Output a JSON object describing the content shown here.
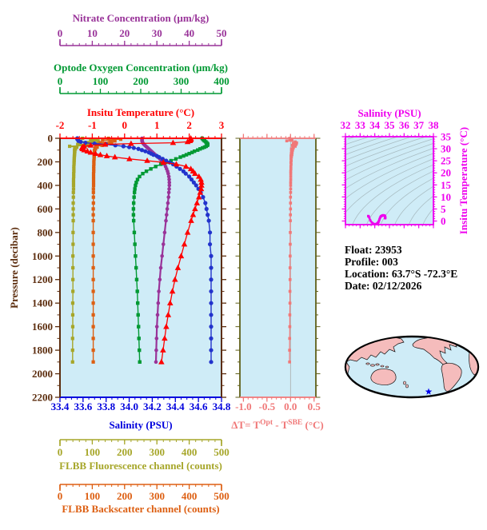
{
  "info": {
    "lines": [
      "Float:  23953",
      "Profile:  003",
      "Location:  63.7°S  -72.3°E",
      "Date:  02/12/2026"
    ]
  },
  "colors": {
    "nitrate": "#993399",
    "oxygen": "#009933",
    "temperature": "#FF0000",
    "pressure": "#5C2D0E",
    "salinity": "#0000DD",
    "salinity_curve": "#2233CC",
    "delta": "#F07878",
    "delta_frame": "#5F5F18",
    "magenta": "#EE00EE",
    "fluor": "#A6A629",
    "backscatter": "#DD5F12",
    "plot_bg": "#CFECF7",
    "land": "#F5BCBC",
    "contour": "#A8BCC2",
    "map_outline": "#000000",
    "zero_line": "#AAAAAA",
    "star": "#0000EE",
    "info_text": "#000000"
  },
  "axes": {
    "nitrate": {
      "label": "Nitrate Concentration (µm/kg)",
      "ticks": [
        "0",
        "10",
        "20",
        "30",
        "40",
        "50"
      ],
      "min": 0,
      "max": 50,
      "minor": 2
    },
    "oxygen": {
      "label": "Optode Oxygen Concentration (µm/kg)",
      "ticks": [
        "0",
        "100",
        "200",
        "300",
        "400"
      ],
      "min": 0,
      "max": 400,
      "minor": 20
    },
    "temperature": {
      "label": "Insitu Temperature (°C)",
      "ticks": [
        "-2",
        "-1",
        "0",
        "1",
        "2",
        "3"
      ],
      "min": -2,
      "max": 3,
      "minor": 0.2
    },
    "pressure": {
      "label": "Pressure (decibar)",
      "ticks": [
        "0",
        "200",
        "400",
        "600",
        "800",
        "1000",
        "1200",
        "1400",
        "1600",
        "1800",
        "2000",
        "2200"
      ],
      "min": 0,
      "max": 2200,
      "minor": 100
    },
    "salinity": {
      "label": "Salinity (PSU)",
      "ticks": [
        "33.4",
        "33.6",
        "33.8",
        "34.0",
        "34.2",
        "34.4",
        "34.6",
        "34.8"
      ],
      "min": 33.4,
      "max": 34.8,
      "minor": 0.05
    },
    "fluor": {
      "label": "FLBB Fluorescence channel (counts)",
      "ticks": [
        "0",
        "100",
        "200",
        "300",
        "400",
        "500"
      ],
      "min": 0,
      "max": 500,
      "minor": 20
    },
    "back": {
      "label": "FLBB Backscatter channel (counts)",
      "ticks": [
        "0",
        "100",
        "200",
        "300",
        "400",
        "500"
      ],
      "min": 0,
      "max": 500,
      "minor": 20
    },
    "delta": {
      "title": {
        "p1": "ΔT= T",
        "s1": "Opt",
        "p2": " - T",
        "s2": "SBE",
        "p3": " (°C)"
      },
      "ticks": [
        "-1.0",
        "-0.5",
        "0.0",
        "0.5"
      ],
      "min": -1.0,
      "max": 0.5,
      "minor": 0.1
    },
    "ts_sal": {
      "label": "Salinity (PSU)",
      "ticks": [
        "32",
        "33",
        "34",
        "35",
        "36",
        "37",
        "38"
      ],
      "min": 32,
      "max": 38,
      "minor": 0.25
    },
    "ts_temp": {
      "label": "Insitu Temperature (°C)",
      "ticks": [
        "0",
        "5",
        "10",
        "15",
        "20",
        "25",
        "30",
        "35"
      ],
      "min": 0,
      "max": 35,
      "minor": 1
    }
  },
  "chart_data": [
    {
      "id": "profiles",
      "type": "line",
      "ylabel": "Pressure (decibar)",
      "ylim": [
        0,
        2200
      ],
      "pressure_db": [
        0,
        8,
        15,
        22,
        30,
        38,
        45,
        52,
        60,
        68,
        75,
        82,
        90,
        100,
        110,
        120,
        130,
        140,
        150,
        160,
        175,
        190,
        205,
        220,
        240,
        260,
        280,
        300,
        325,
        350,
        375,
        400,
        430,
        460,
        500,
        550,
        600,
        650,
        700,
        800,
        900,
        1000,
        1100,
        1200,
        1300,
        1400,
        1500,
        1600,
        1700,
        1800,
        1900
      ],
      "series": [
        {
          "name": "Insitu Temperature (°C)",
          "xlim": [
            -2,
            3
          ],
          "color_key": "temperature",
          "marker": "triangle",
          "values": [
            2.05,
            2.05,
            2.04,
            2.02,
            1.95,
            1.5,
            0.2,
            -0.6,
            -1.05,
            -1.25,
            -1.3,
            -1.32,
            -1.3,
            -1.25,
            -1.15,
            -1.05,
            -0.9,
            -0.75,
            -0.55,
            -0.3,
            0.15,
            0.7,
            1.2,
            1.6,
            1.9,
            2.05,
            2.12,
            2.18,
            2.3,
            2.36,
            2.38,
            2.38,
            2.37,
            2.34,
            2.3,
            2.24,
            2.18,
            2.12,
            2.06,
            1.95,
            1.85,
            1.75,
            1.65,
            1.56,
            1.48,
            1.41,
            1.35,
            1.29,
            1.24,
            1.19,
            1.14
          ]
        },
        {
          "name": "Salinity (PSU)",
          "xlim": [
            33.4,
            34.8
          ],
          "color_key": "salinity_curve",
          "marker": "circle",
          "values": [
            33.55,
            33.55,
            33.56,
            33.56,
            33.58,
            33.62,
            33.7,
            33.8,
            33.88,
            33.95,
            34.0,
            34.04,
            34.08,
            34.11,
            34.14,
            34.17,
            34.19,
            34.21,
            34.24,
            34.26,
            34.29,
            34.32,
            34.35,
            34.38,
            34.41,
            34.44,
            34.47,
            34.49,
            34.52,
            34.54,
            34.56,
            34.58,
            34.6,
            34.62,
            34.64,
            34.66,
            34.67,
            34.68,
            34.69,
            34.7,
            34.7,
            34.71,
            34.71,
            34.71,
            34.71,
            34.71,
            34.71,
            34.71,
            34.71,
            34.71,
            34.71
          ]
        },
        {
          "name": "Optode Oxygen Concentration (µm/kg)",
          "xlim": [
            0,
            400
          ],
          "color_key": "oxygen",
          "marker": "square",
          "values": [
            352,
            354,
            356,
            358,
            361,
            363,
            365,
            366,
            365,
            362,
            358,
            353,
            347,
            341,
            333,
            327,
            320,
            313,
            306,
            298,
            287,
            275,
            262,
            250,
            237,
            225,
            214,
            205,
            197,
            192,
            189,
            187,
            185.5,
            184.5,
            183.5,
            182.5,
            182,
            182,
            182.5,
            184,
            185.5,
            187,
            188.5,
            190,
            191.5,
            192.5,
            193.5,
            194.5,
            195.5,
            196.5,
            197.5
          ]
        },
        {
          "name": "Nitrate Concentration (µm/kg)",
          "xlim": [
            0,
            50
          ],
          "color_key": "nitrate",
          "marker": "circle",
          "values": [
            25.4,
            25.4,
            25.4,
            25.4,
            25.5,
            25.6,
            25.8,
            26.0,
            26.3,
            26.6,
            26.9,
            27.2,
            27.5,
            27.9,
            28.3,
            28.7,
            29.1,
            29.5,
            29.9,
            30.3,
            30.9,
            31.4,
            31.9,
            32.3,
            32.7,
            33.0,
            33.3,
            33.5,
            33.7,
            33.8,
            33.85,
            33.85,
            33.8,
            33.7,
            33.6,
            33.4,
            33.2,
            33.0,
            32.8,
            32.4,
            32.0,
            31.6,
            31.2,
            30.9,
            30.6,
            30.4,
            30.2,
            30.0,
            29.9,
            29.8,
            29.7
          ]
        },
        {
          "name": "FLBB Fluorescence channel (counts)",
          "xlim": [
            0,
            500
          ],
          "color_key": "fluor",
          "marker": "square",
          "values": [
            70,
            112,
            95,
            118,
            62,
            100,
            116,
            55,
            85,
            30,
            52,
            46,
            48,
            45,
            46,
            45.5,
            45,
            45,
            44.5,
            44.5,
            44,
            44,
            43.5,
            43.5,
            43,
            43,
            43,
            42.5,
            42.5,
            42,
            42,
            42,
            42,
            41.5,
            41.5,
            41,
            41,
            41,
            41,
            40.5,
            40.5,
            40,
            40,
            40,
            40,
            39.5,
            39.5,
            39.5,
            39,
            39,
            39
          ]
        },
        {
          "name": "FLBB Backscatter channel (counts)",
          "xlim": [
            0,
            500
          ],
          "color_key": "backscatter",
          "marker": "square",
          "values": [
            150,
            188,
            132,
            170,
            155,
            125,
            160,
            118,
            130,
            112,
            115,
            109,
            110,
            107,
            107,
            106.5,
            106.5,
            106,
            106,
            105.5,
            105.5,
            105,
            105,
            105,
            104.5,
            104.5,
            104.5,
            104,
            104,
            104,
            104,
            104,
            103.5,
            103.5,
            103.5,
            103.5,
            103,
            103,
            103,
            103,
            103,
            103,
            103,
            103,
            103,
            103,
            103,
            103,
            103,
            103,
            103
          ]
        }
      ]
    },
    {
      "id": "delta_t",
      "type": "line",
      "xlabel": "ΔT= TOpt - TSBE (°C)",
      "xlim": [
        -1.0,
        0.5
      ],
      "zero_line": true,
      "values": [
        -0.02,
        0.0,
        0.03,
        -0.08,
        0.1,
        0.13,
        0.06,
        0.12,
        0.04,
        0.1,
        0.05,
        0.06,
        0.02,
        0.045,
        0.02,
        0.035,
        0.015,
        0.03,
        0.01,
        0.02,
        0.01,
        0.015,
        0.008,
        0.012,
        0.008,
        0.008,
        0.005,
        0.005,
        0.005,
        0.005,
        0.003,
        0.003,
        0.003,
        0.002,
        0.0,
        0.0,
        0.0,
        -0.002,
        -0.003,
        -0.005,
        -0.006,
        -0.008,
        -0.01,
        -0.01,
        -0.012,
        -0.012,
        -0.015,
        -0.015,
        -0.018,
        -0.02,
        -0.02
      ]
    },
    {
      "id": "ts_diagram",
      "type": "line",
      "xlabel": "Salinity (PSU)",
      "ylabel": "Insitu Temperature (°C)",
      "xlim": [
        32,
        38
      ],
      "ylim": [
        -1.5,
        35
      ],
      "curve": "salinity_vs_temperature_from_profiles",
      "sigma_contours": {
        "from": 18,
        "to": 30.8,
        "step": 0.75
      }
    }
  ]
}
